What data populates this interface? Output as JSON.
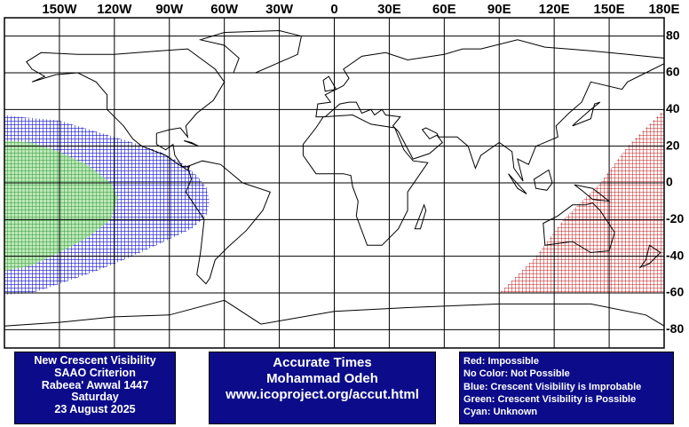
{
  "map": {
    "lon_labels": [
      {
        "value": -150,
        "label": "150W"
      },
      {
        "value": -120,
        "label": "120W"
      },
      {
        "value": -90,
        "label": "90W"
      },
      {
        "value": -60,
        "label": "60W"
      },
      {
        "value": -30,
        "label": "30W"
      },
      0,
      {
        "value": 30,
        "label": "30E"
      },
      {
        "value": 60,
        "label": "60E"
      },
      {
        "value": 90,
        "label": "90E"
      },
      {
        "value": 120,
        "label": "120E"
      },
      {
        "value": 150,
        "label": "150E"
      },
      {
        "value": 180,
        "label": "180E"
      }
    ],
    "lat_labels": [
      80,
      60,
      40,
      20,
      0,
      -20,
      -40,
      -60,
      -80
    ]
  },
  "info_box": {
    "lines": [
      "New Crescent Visibility",
      "SAAO Criterion",
      "Rabeea' Awwal 1447",
      "Saturday",
      "23 August 2025"
    ]
  },
  "credit_box": {
    "lines": [
      "Accurate Times",
      "Mohammad Odeh",
      "www.icoproject.org/accut.html"
    ]
  },
  "legend": {
    "lines": [
      "Red: Impossible",
      "No Color: Not Possible",
      "Blue: Crescent Visibility is Improbable",
      "Green: Crescent Visibility is Possible",
      "Cyan: Unknown"
    ]
  }
}
